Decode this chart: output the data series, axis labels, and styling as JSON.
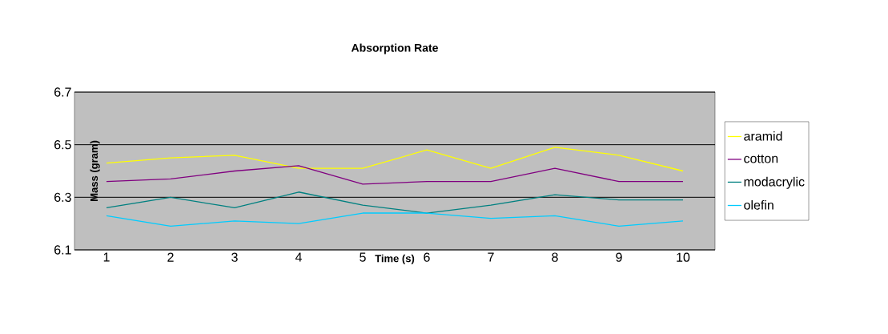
{
  "chart_data": {
    "type": "line",
    "title": "Absorption Rate",
    "xlabel": "Time (s)",
    "ylabel": "Mass (gram)",
    "categories": [
      "1",
      "2",
      "3",
      "4",
      "5",
      "6",
      "7",
      "8",
      "9",
      "10"
    ],
    "series": [
      {
        "name": "aramid",
        "color": "#ffff00",
        "values": [
          6.43,
          6.45,
          6.46,
          6.41,
          6.41,
          6.48,
          6.41,
          6.49,
          6.46,
          6.4
        ]
      },
      {
        "name": "cotton",
        "color": "#800080",
        "values": [
          6.36,
          6.37,
          6.4,
          6.42,
          6.35,
          6.36,
          6.36,
          6.41,
          6.36,
          6.36
        ]
      },
      {
        "name": "modacrylic",
        "color": "#008080",
        "values": [
          6.26,
          6.3,
          6.26,
          6.32,
          6.27,
          6.24,
          6.27,
          6.31,
          6.29,
          6.29
        ]
      },
      {
        "name": "olefin",
        "color": "#00ccff",
        "values": [
          6.23,
          6.19,
          6.21,
          6.2,
          6.24,
          6.24,
          6.22,
          6.23,
          6.19,
          6.21
        ]
      }
    ],
    "ylim": [
      6.1,
      6.7
    ],
    "yticks": [
      6.1,
      6.3,
      6.5,
      6.7
    ],
    "grid": "y",
    "legend": "right",
    "marker": "none",
    "line_style": "solid"
  }
}
